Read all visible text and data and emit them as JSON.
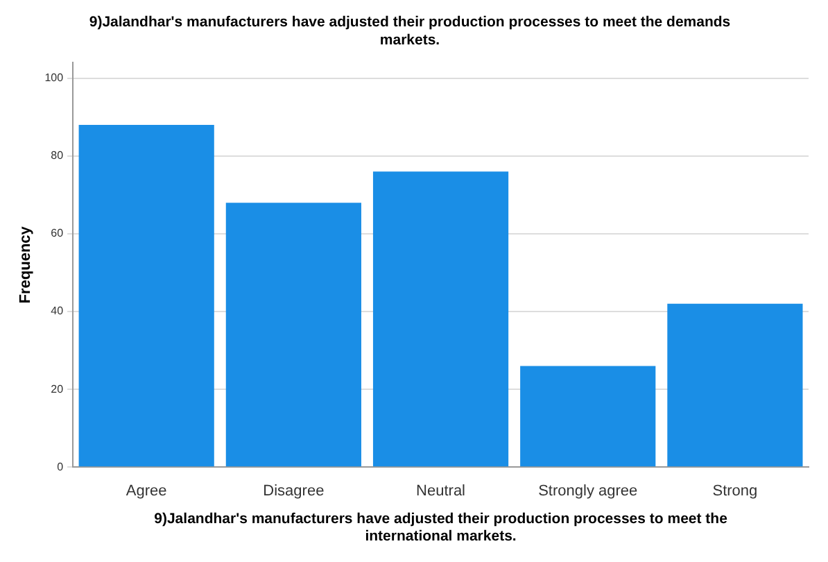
{
  "chart_data": {
    "type": "bar",
    "title": "9)Jalandhar's manufacturers have adjusted their production processes to meet the demands\nmarkets.",
    "xlabel": "9)Jalandhar's manufacturers have adjusted their production processes to meet the\ninternational markets.",
    "ylabel": "Frequency",
    "categories": [
      "Agree",
      "Disagree",
      "Neutral",
      "Strongly agree",
      "Strong"
    ],
    "values": [
      88,
      68,
      76,
      26,
      42
    ],
    "color": "#1a8ee6",
    "ylim": [
      0,
      104
    ],
    "yticks": [
      0,
      20,
      40,
      60,
      80,
      100
    ],
    "grid": "y",
    "legend": false
  }
}
